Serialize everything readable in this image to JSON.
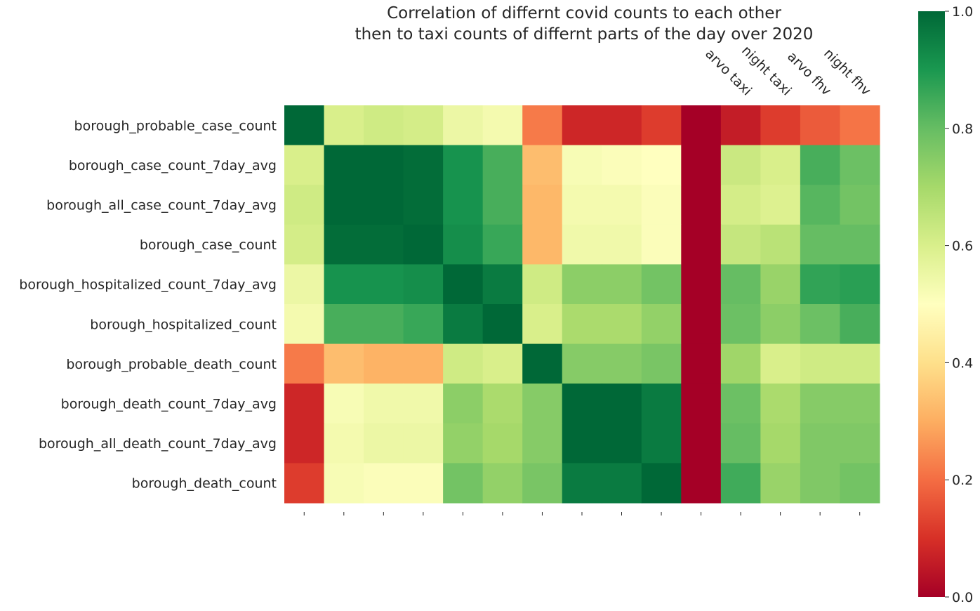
{
  "chart_data": {
    "type": "heatmap",
    "title": "Correlation of differnt covid counts to each other\nthen to taxi counts of differnt parts of the day over 2020",
    "colormap": "RdYlGn",
    "vmin": 0,
    "vmax": 1,
    "rows": [
      "borough_probable_case_count",
      "borough_case_count_7day_avg",
      "borough_all_case_count_7day_avg",
      "borough_case_count",
      "borough_hospitalized_count_7day_avg",
      "borough_hospitalized_count",
      "borough_probable_death_count",
      "borough_death_count_7day_avg",
      "borough_all_death_count_7day_avg",
      "borough_death_count"
    ],
    "columns": [
      "",
      "",
      "",
      "",
      "",
      "",
      "",
      "",
      "",
      "",
      "",
      "arvo taxi",
      "night taxi",
      "arvo fhv",
      "night fhv"
    ],
    "values": [
      [
        1.0,
        0.6,
        0.62,
        0.61,
        0.55,
        0.53,
        0.22,
        0.08,
        0.08,
        0.12,
        0.0,
        0.06,
        0.12,
        0.17,
        0.21
      ],
      [
        0.6,
        1.0,
        1.0,
        0.99,
        0.91,
        0.84,
        0.33,
        0.52,
        0.51,
        0.5,
        0.0,
        0.63,
        0.6,
        0.84,
        0.79
      ],
      [
        0.62,
        1.0,
        1.0,
        0.99,
        0.91,
        0.84,
        0.32,
        0.53,
        0.53,
        0.51,
        0.0,
        0.61,
        0.59,
        0.82,
        0.78
      ],
      [
        0.61,
        0.99,
        0.99,
        1.0,
        0.92,
        0.86,
        0.32,
        0.54,
        0.54,
        0.51,
        0.0,
        0.64,
        0.66,
        0.8,
        0.8
      ],
      [
        0.55,
        0.91,
        0.91,
        0.92,
        1.0,
        0.96,
        0.62,
        0.74,
        0.74,
        0.78,
        0.0,
        0.8,
        0.72,
        0.87,
        0.88
      ],
      [
        0.53,
        0.84,
        0.84,
        0.86,
        0.96,
        1.0,
        0.6,
        0.69,
        0.69,
        0.73,
        0.0,
        0.79,
        0.74,
        0.79,
        0.84
      ],
      [
        0.22,
        0.33,
        0.31,
        0.31,
        0.62,
        0.6,
        1.0,
        0.75,
        0.75,
        0.77,
        0.0,
        0.71,
        0.6,
        0.62,
        0.62
      ],
      [
        0.08,
        0.52,
        0.54,
        0.54,
        0.74,
        0.69,
        0.75,
        1.0,
        1.0,
        0.96,
        0.0,
        0.79,
        0.69,
        0.75,
        0.75
      ],
      [
        0.08,
        0.53,
        0.55,
        0.55,
        0.73,
        0.7,
        0.75,
        1.0,
        1.0,
        0.96,
        0.0,
        0.8,
        0.7,
        0.76,
        0.76
      ],
      [
        0.12,
        0.52,
        0.51,
        0.51,
        0.78,
        0.73,
        0.77,
        0.96,
        0.96,
        1.0,
        0.0,
        0.85,
        0.72,
        0.76,
        0.78
      ]
    ],
    "colorbar_ticks": [
      "0.0",
      "0.2",
      "0.4",
      "0.6",
      "0.8",
      "1.0"
    ],
    "grid": false
  }
}
